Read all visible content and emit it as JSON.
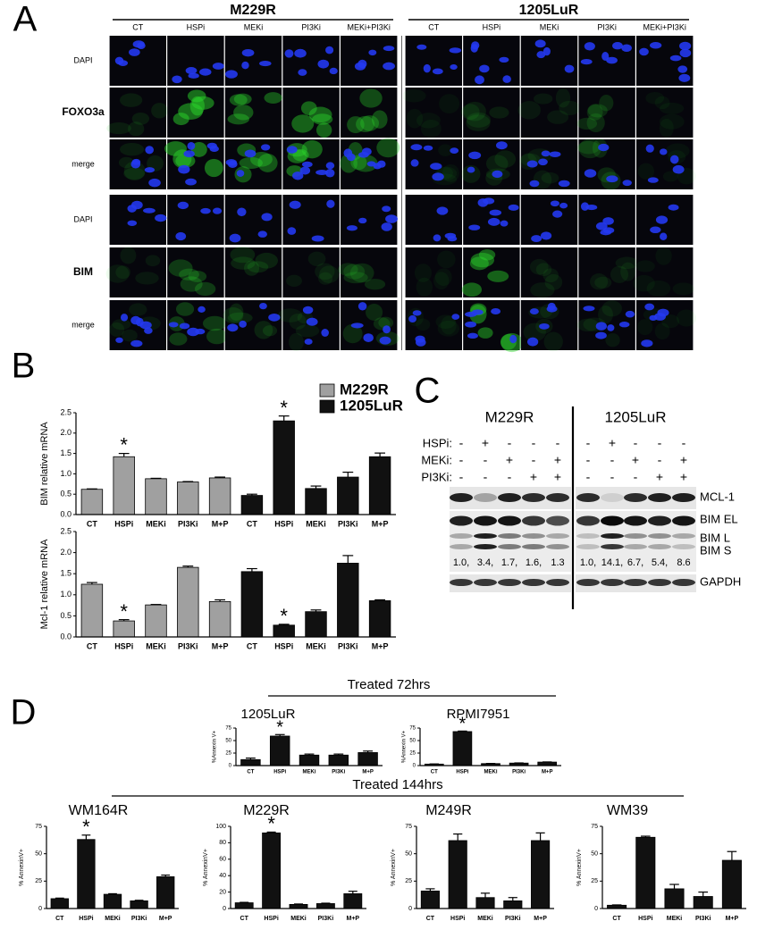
{
  "panel_a": {
    "label": "A",
    "groups": [
      {
        "name": "M229R",
        "columns": [
          "CT",
          "HSPi",
          "MEKi",
          "PI3Ki",
          "MEKi+PI3Ki"
        ]
      },
      {
        "name": "1205LuR",
        "columns": [
          "CT",
          "HSPi",
          "MEKi",
          "PI3Ki",
          "MEKi+PI3Ki"
        ]
      }
    ],
    "rows": [
      "DAPI",
      "FOXO3a",
      "merge",
      "DAPI",
      "BIM",
      "merge"
    ]
  },
  "panel_b": {
    "label": "B",
    "charts": [
      {
        "type": "bar",
        "y_label": "BIM relative mRNA",
        "categories": [
          "CT",
          "HSPi",
          "MEKi",
          "PI3Ki",
          "M+P",
          "CT",
          "HSPi",
          "MEKi",
          "PI3Ki",
          "M+P"
        ],
        "series": [
          {
            "name": "M229R",
            "color": "#a0a0a0",
            "values": [
              0.62,
              1.42,
              0.88,
              0.8,
              0.9,
              null,
              null,
              null,
              null,
              null
            ],
            "errors": [
              0.01,
              0.08,
              0.01,
              0.01,
              0.02,
              null,
              null,
              null,
              null,
              null
            ]
          },
          {
            "name": "1205LuR",
            "color": "#111111",
            "values": [
              null,
              null,
              null,
              null,
              null,
              0.47,
              2.3,
              0.64,
              0.92,
              1.42
            ],
            "errors": [
              null,
              null,
              null,
              null,
              null,
              0.03,
              0.12,
              0.06,
              0.12,
              0.09
            ]
          }
        ],
        "annotations": [
          null,
          "*",
          null,
          null,
          null,
          null,
          "*",
          null,
          null,
          null
        ],
        "ylim": [
          0,
          2.5
        ],
        "yticks": [
          {
            "value": 0,
            "label": "0.0"
          },
          0.5,
          {
            "value": 1,
            "label": "1.0"
          },
          1.5,
          {
            "value": 2,
            "label": "2.0"
          },
          2.5
        ]
      },
      {
        "type": "bar",
        "y_label": "Mcl-1 relative mRNA",
        "categories": [
          "CT",
          "HSPi",
          "MEKi",
          "PI3Ki",
          "M+P",
          "CT",
          "HSPi",
          "MEKi",
          "PI3Ki",
          "M+P"
        ],
        "series": [
          {
            "color": "#a0a0a0",
            "values": [
              1.25,
              0.38,
              0.76,
              1.65,
              0.84,
              null,
              null,
              null,
              null,
              null
            ],
            "errors": [
              0.04,
              0.03,
              0.01,
              0.03,
              0.04,
              null,
              null,
              null,
              null,
              null
            ]
          },
          {
            "color": "#111111",
            "values": [
              null,
              null,
              null,
              null,
              null,
              1.55,
              0.28,
              0.6,
              1.75,
              0.86
            ],
            "errors": [
              null,
              null,
              null,
              null,
              null,
              0.07,
              0.02,
              0.04,
              0.18,
              0.02
            ]
          }
        ],
        "annotations": [
          null,
          "*",
          null,
          null,
          null,
          null,
          "*",
          null,
          null,
          null
        ],
        "ylim": [
          0,
          2.5
        ],
        "yticks": [
          {
            "value": 0,
            "label": "0.0"
          },
          0.5,
          {
            "value": 1,
            "label": "1.0"
          },
          1.5,
          {
            "value": 2,
            "label": "2.0"
          },
          2.5
        ]
      }
    ]
  },
  "panel_c": {
    "label": "C",
    "groups": [
      "M229R",
      "1205LuR"
    ],
    "treatments": [
      {
        "name": "HSPi:",
        "signs": [
          "-",
          "+",
          "-",
          "-",
          "-",
          "-",
          "+",
          "-",
          "-",
          "-"
        ]
      },
      {
        "name": "MEKi:",
        "signs": [
          "-",
          "-",
          "+",
          "-",
          "+",
          "-",
          "-",
          "+",
          "-",
          "+"
        ]
      },
      {
        "name": "PI3Ki:",
        "signs": [
          "-",
          "-",
          "-",
          "+",
          "+",
          "-",
          "-",
          "-",
          "+",
          "+"
        ]
      }
    ],
    "bands": [
      "MCL-1",
      "BIM EL",
      "BIM L",
      "BIM S",
      "GAPDH"
    ],
    "quantification": [
      "1.0,",
      "3.4,",
      "1.7,",
      "1.6,",
      "1.3",
      "1.0,",
      "14.1,",
      "6.7,",
      "5.4,",
      "8.6"
    ]
  },
  "panel_d": {
    "label": "D",
    "headings": [
      "Treated 72hrs",
      "Treated 144hrs"
    ],
    "charts": [
      {
        "type": "bar",
        "title": "1205LuR",
        "y_label": "%Annexin V+",
        "categories": [
          "CT",
          "HSPi",
          "MEKi",
          "PI3Ki",
          "M+P"
        ],
        "values": [
          12,
          59,
          21,
          21,
          26
        ],
        "errors": [
          3,
          3,
          2,
          2,
          3
        ],
        "annotations": [
          null,
          "*",
          null,
          null,
          null
        ],
        "color": "#111111",
        "ylim": [
          0,
          75
        ],
        "yticks": [
          0,
          25,
          50,
          75
        ]
      },
      {
        "type": "bar",
        "title": "RPMI7951",
        "y_label": "%Annexin V+",
        "categories": [
          "CT",
          "HSPi",
          "MEKi",
          "PI3Ki",
          "M+P"
        ],
        "values": [
          3,
          68,
          4,
          5,
          7
        ],
        "errors": [
          0.3,
          1,
          0.3,
          0.3,
          0.3
        ],
        "annotations": [
          null,
          "*",
          null,
          null,
          null
        ],
        "color": "#111111",
        "ylim": [
          0,
          75
        ],
        "yticks": [
          0,
          25,
          50,
          75
        ]
      },
      {
        "type": "bar",
        "title": "WM164R",
        "y_label": "% AnnexinV+",
        "categories": [
          "CT",
          "HSPi",
          "MEKi",
          "PI3Ki",
          "M+P"
        ],
        "values": [
          9,
          63,
          13,
          7,
          29
        ],
        "errors": [
          0.5,
          4,
          0.5,
          0.5,
          1.5
        ],
        "annotations": [
          null,
          "*",
          null,
          null,
          null
        ],
        "color": "#111111",
        "ylim": [
          0,
          75
        ],
        "yticks": [
          0,
          25,
          50,
          75
        ]
      },
      {
        "type": "bar",
        "title": "M229R",
        "y_label": "% AnnexinV+",
        "categories": [
          "CT",
          "HSPi",
          "MEKi",
          "PI3Ki",
          "M+P"
        ],
        "values": [
          7,
          92,
          5,
          6,
          18
        ],
        "errors": [
          0.5,
          1,
          0.5,
          0.5,
          3
        ],
        "annotations": [
          null,
          "*",
          null,
          null,
          null
        ],
        "color": "#111111",
        "ylim": [
          0,
          100
        ],
        "yticks": [
          0,
          20,
          40,
          60,
          80,
          100
        ]
      },
      {
        "type": "bar",
        "title": "M249R",
        "y_label": "% AnnexinV+",
        "categories": [
          "CT",
          "HSPi",
          "MEKi",
          "PI3Ki",
          "M+P"
        ],
        "values": [
          16,
          62,
          10,
          7,
          62
        ],
        "errors": [
          2,
          6,
          4,
          3,
          7
        ],
        "color": "#111111",
        "ylim": [
          0,
          75
        ],
        "yticks": [
          0,
          25,
          50,
          75
        ]
      },
      {
        "type": "bar",
        "title": "WM39",
        "y_label": "% AnnexinV+",
        "categories": [
          "CT",
          "HSPi",
          "MEKi",
          "PI3Ki",
          "M+P"
        ],
        "values": [
          3,
          65,
          18,
          11,
          44
        ],
        "errors": [
          0.3,
          1,
          4,
          4,
          8
        ],
        "color": "#111111",
        "ylim": [
          0,
          75
        ],
        "yticks": [
          0,
          25,
          50,
          75
        ]
      }
    ]
  }
}
